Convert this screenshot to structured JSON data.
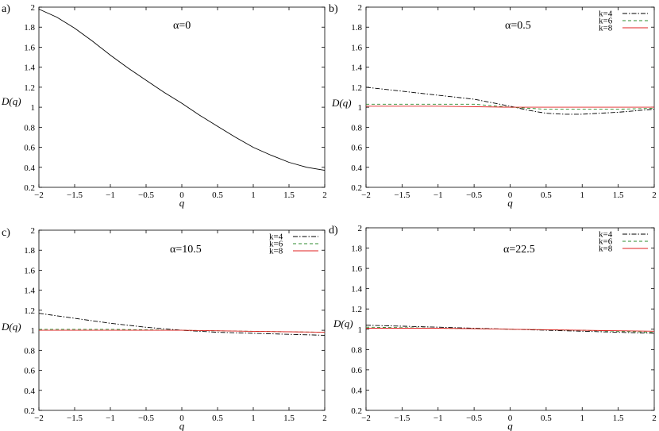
{
  "chart_data": [
    {
      "panel_label": "a)",
      "type": "line",
      "annotation": "α=0",
      "xlabel": "q",
      "ylabel": "D(q)",
      "xlim": [
        -2,
        2
      ],
      "ylim": [
        0.2,
        2
      ],
      "xticks": [
        "−2",
        "−1.5",
        "−1",
        "−0.5",
        "0",
        "0.5",
        "1",
        "1.5",
        "2"
      ],
      "yticks": [
        "0.2",
        "0.4",
        "0.6",
        "0.8",
        "1",
        "1.2",
        "1.4",
        "1.6",
        "1.8",
        "2"
      ],
      "legend": null,
      "series": [
        {
          "style": "solid",
          "color": "#000000",
          "x": [
            -2,
            -1.75,
            -1.5,
            -1.25,
            -1,
            -0.75,
            -0.5,
            -0.25,
            0,
            0.25,
            0.5,
            0.75,
            1,
            1.25,
            1.5,
            1.75,
            2
          ],
          "y": [
            1.98,
            1.9,
            1.79,
            1.66,
            1.52,
            1.39,
            1.27,
            1.15,
            1.04,
            0.92,
            0.81,
            0.7,
            0.6,
            0.52,
            0.45,
            0.4,
            0.37
          ]
        }
      ]
    },
    {
      "panel_label": "b)",
      "type": "line",
      "annotation": "α=0.5",
      "xlabel": "q",
      "ylabel": "D(q)",
      "xlim": [
        -2,
        2
      ],
      "ylim": [
        0.2,
        2
      ],
      "xticks": [
        "−2",
        "−1.5",
        "−1",
        "−0.5",
        "0",
        "0.5",
        "1",
        "1.5",
        "2"
      ],
      "yticks": [
        "0.2",
        "0.4",
        "0.6",
        "0.8",
        "1",
        "1.2",
        "1.4",
        "1.6",
        "1.8",
        "2"
      ],
      "legend": "top-right",
      "series": [
        {
          "name": "k=4",
          "style": "dashdot",
          "color": "#000000",
          "x": [
            -2,
            -1.5,
            -1,
            -0.5,
            0,
            0.25,
            0.5,
            0.75,
            1,
            1.5,
            2
          ],
          "y": [
            1.2,
            1.16,
            1.12,
            1.08,
            1.01,
            0.97,
            0.94,
            0.93,
            0.93,
            0.95,
            0.98
          ]
        },
        {
          "name": "k=6",
          "style": "dashed",
          "color": "#2e8b2e",
          "x": [
            -2,
            -1.5,
            -1,
            -0.5,
            0,
            0.5,
            1,
            1.5,
            2
          ],
          "y": [
            1.03,
            1.03,
            1.03,
            1.03,
            1.0,
            0.98,
            0.98,
            0.98,
            0.99
          ]
        },
        {
          "name": "k=8",
          "style": "solid",
          "color": "#e02020",
          "x": [
            -2,
            -1,
            0,
            1,
            2
          ],
          "y": [
            1.01,
            1.01,
            1.0,
            1.0,
            1.0
          ]
        }
      ]
    },
    {
      "panel_label": "c)",
      "type": "line",
      "annotation": "α=10.5",
      "xlabel": "q",
      "ylabel": "D(q)",
      "xlim": [
        -2,
        2
      ],
      "ylim": [
        0.2,
        2
      ],
      "xticks": [
        "−2",
        "−1.5",
        "−1",
        "−0.5",
        "0",
        "0.5",
        "1",
        "1.5",
        "2"
      ],
      "yticks": [
        "0.2",
        "0.4",
        "0.6",
        "0.8",
        "1",
        "1.2",
        "1.4",
        "1.6",
        "1.8",
        "2"
      ],
      "legend": "top-right",
      "series": [
        {
          "name": "k=4",
          "style": "dashdot",
          "color": "#000000",
          "x": [
            -2,
            -1.5,
            -1,
            -0.5,
            0,
            0.5,
            1,
            1.5,
            2
          ],
          "y": [
            1.17,
            1.12,
            1.07,
            1.03,
            1.0,
            0.98,
            0.97,
            0.96,
            0.95
          ]
        },
        {
          "name": "k=6",
          "style": "dashed",
          "color": "#2e8b2e",
          "x": [
            -2,
            -1,
            0,
            1,
            2
          ],
          "y": [
            1.01,
            1.01,
            1.0,
            0.99,
            0.98
          ]
        },
        {
          "name": "k=8",
          "style": "solid",
          "color": "#e02020",
          "x": [
            -2,
            -1,
            0,
            1,
            2
          ],
          "y": [
            1.0,
            1.0,
            1.0,
            0.99,
            0.98
          ]
        }
      ]
    },
    {
      "panel_label": "d)",
      "type": "line",
      "annotation": "α=22.5",
      "xlabel": "q",
      "ylabel": "D(q)",
      "xlim": [
        -2,
        2
      ],
      "ylim": [
        0.2,
        2
      ],
      "xticks": [
        "−2",
        "−1.5",
        "−1",
        "−0.5",
        "0",
        "0.5",
        "1",
        "1.5",
        "2"
      ],
      "yticks": [
        "0.2",
        "0.4",
        "0.6",
        "0.8",
        "1",
        "1.2",
        "1.4",
        "1.6",
        "1.8",
        "2"
      ],
      "legend": "top-right",
      "series": [
        {
          "name": "k=4",
          "style": "dashdot",
          "color": "#000000",
          "x": [
            -2,
            -1,
            0,
            1,
            2
          ],
          "y": [
            1.04,
            1.02,
            1.0,
            0.98,
            0.96
          ]
        },
        {
          "name": "k=6",
          "style": "dashed",
          "color": "#2e8b2e",
          "x": [
            -2,
            -1,
            0,
            1,
            2
          ],
          "y": [
            1.02,
            1.01,
            1.0,
            0.99,
            0.97
          ]
        },
        {
          "name": "k=8",
          "style": "solid",
          "color": "#e02020",
          "x": [
            -2,
            -1,
            0,
            1,
            2
          ],
          "y": [
            1.01,
            1.01,
            1.0,
            0.99,
            0.98
          ]
        }
      ]
    }
  ]
}
